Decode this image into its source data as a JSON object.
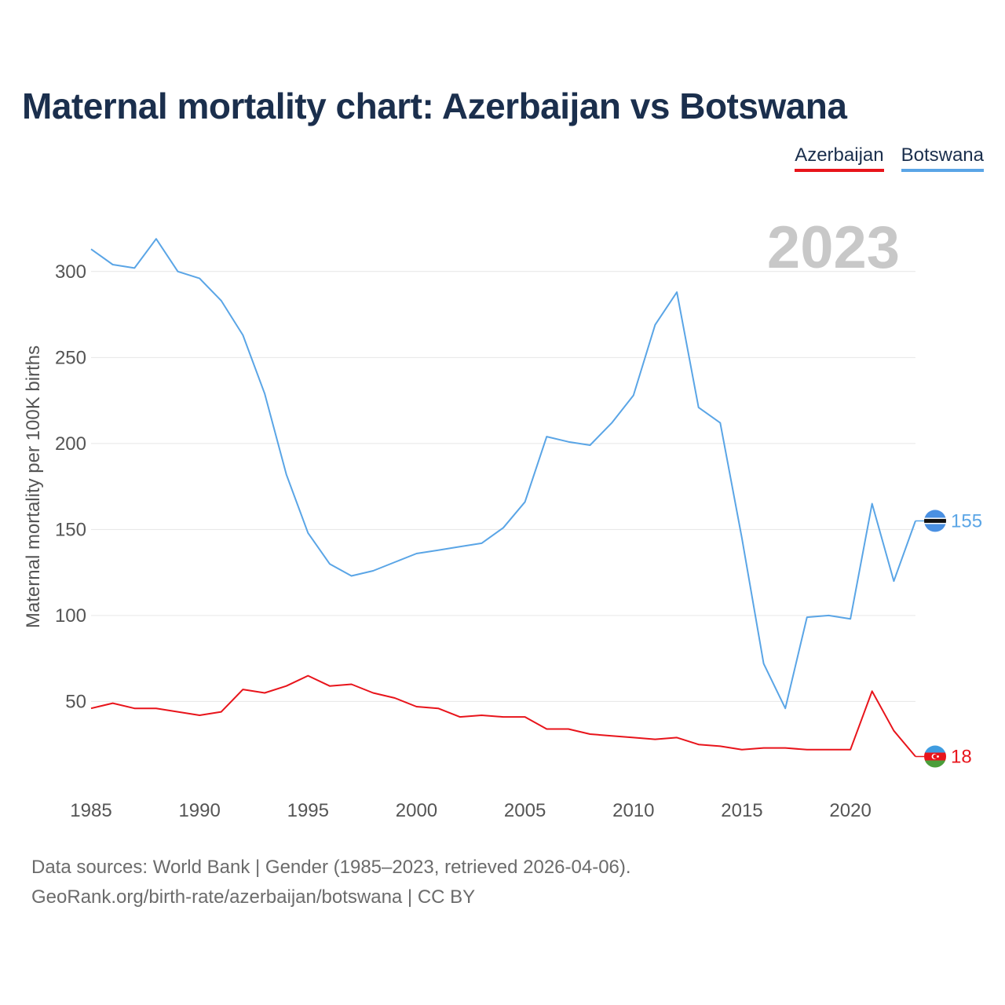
{
  "title": "Maternal mortality chart: Azerbaijan vs Botswana",
  "legend": [
    "Azerbaijan",
    "Botswana"
  ],
  "year_watermark": "2023",
  "footer": {
    "line1": "Data sources: World Bank | Gender (1985–2023, retrieved 2026-04-06).",
    "line2": "GeoRank.org/birth-rate/azerbaijan/botswana | CC BY"
  },
  "colors": {
    "azerbaijan": "#e8141b",
    "botswana": "#5aa5e6",
    "grid": "#e6e6e6",
    "title": "#1b2f4d"
  },
  "chart_data": {
    "type": "line",
    "title": "Maternal mortality chart: Azerbaijan vs Botswana",
    "xlabel": "",
    "ylabel": "Maternal mortality per 100K births",
    "xlim": [
      1985,
      2023
    ],
    "ylim": [
      5,
      320
    ],
    "x_ticks": [
      1985,
      1990,
      1995,
      2000,
      2005,
      2010,
      2015,
      2020
    ],
    "y_ticks": [
      50,
      100,
      150,
      200,
      250,
      300
    ],
    "x": [
      1985,
      1986,
      1987,
      1988,
      1989,
      1990,
      1991,
      1992,
      1993,
      1994,
      1995,
      1996,
      1997,
      1998,
      1999,
      2000,
      2001,
      2002,
      2003,
      2004,
      2005,
      2006,
      2007,
      2008,
      2009,
      2010,
      2011,
      2012,
      2013,
      2014,
      2015,
      2016,
      2017,
      2018,
      2019,
      2020,
      2021,
      2022,
      2023
    ],
    "series": [
      {
        "name": "Azerbaijan",
        "color": "#e8141b",
        "end_label": "18",
        "values": [
          46,
          49,
          46,
          46,
          44,
          42,
          44,
          57,
          55,
          59,
          65,
          59,
          60,
          55,
          52,
          47,
          46,
          41,
          42,
          41,
          41,
          34,
          34,
          31,
          30,
          29,
          28,
          29,
          25,
          24,
          22,
          23,
          23,
          22,
          22,
          22,
          56,
          33,
          18
        ]
      },
      {
        "name": "Botswana",
        "color": "#5aa5e6",
        "end_label": "155",
        "values": [
          313,
          304,
          302,
          319,
          300,
          296,
          283,
          263,
          229,
          182,
          148,
          130,
          123,
          126,
          131,
          136,
          138,
          140,
          142,
          151,
          166,
          204,
          201,
          199,
          212,
          228,
          269,
          288,
          221,
          212,
          145,
          72,
          46,
          99,
          100,
          98,
          165,
          120,
          155
        ]
      }
    ]
  }
}
